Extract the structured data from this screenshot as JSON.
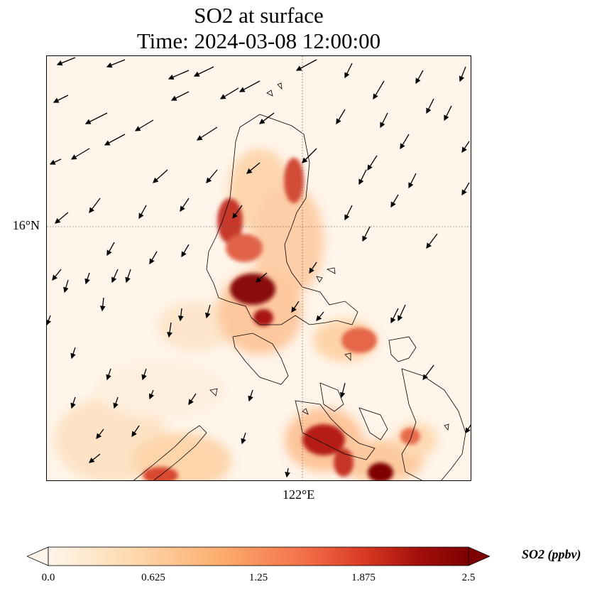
{
  "title": {
    "line1": "SO2 at surface",
    "line2": "Time: 2024-03-08 12:00:00"
  },
  "gridlines": {
    "lat_label": "16°N",
    "lon_label": "122°E",
    "style": "dotted"
  },
  "colorbar": {
    "label": "SO2 (ppbv)",
    "ticks": [
      "0.0",
      "0.625",
      "1.25",
      "1.875",
      "2.5"
    ],
    "min": 0.0,
    "max": 2.5,
    "colors": [
      "#fff5eb",
      "#fdd9ae",
      "#fdaf72",
      "#f4734a",
      "#d93a24",
      "#a30f0b",
      "#7f0000"
    ],
    "extend": "both"
  },
  "colors": {
    "land_outline": "#000000",
    "background": "#fff5ea"
  }
}
